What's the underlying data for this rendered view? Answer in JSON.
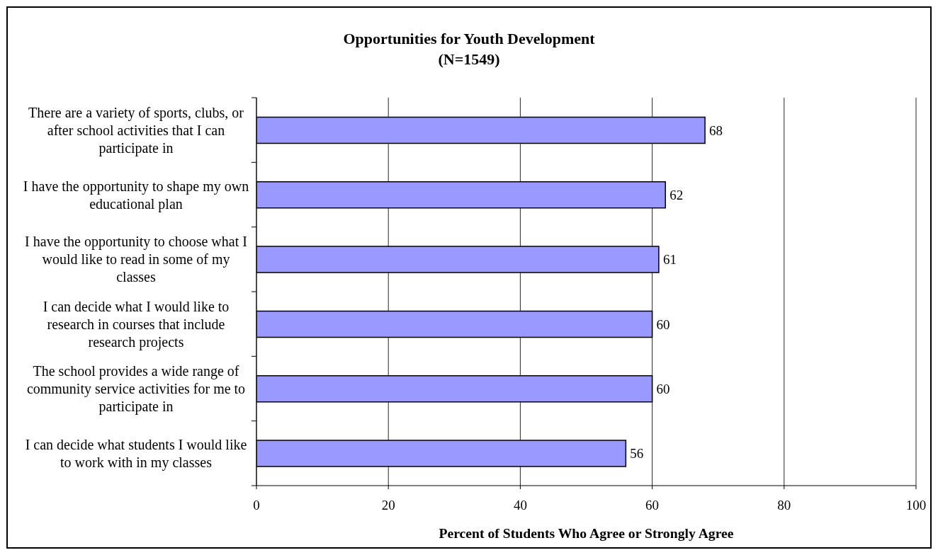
{
  "chart_data": {
    "type": "bar",
    "orientation": "horizontal",
    "title": "Opportunities for Youth Development",
    "subtitle": "(N=1549)",
    "xlabel": "Percent of Students Who Agree or Strongly Agree",
    "categories": [
      "There are a variety of sports, clubs, or after school activities that I can participate in",
      "I have the opportunity to shape my own educational plan",
      "I have the opportunity to choose what I would like to read in some of my classes",
      "I can decide what I would like to research in courses that include research projects",
      "The school provides a wide range of community service activities for me to participate in",
      "I can decide what students I would like to work with in my classes"
    ],
    "values": [
      68,
      62,
      61,
      60,
      60,
      56
    ],
    "color": "#9999ff",
    "xlim": [
      0,
      100
    ],
    "xticks": [
      0,
      20,
      40,
      60,
      80,
      100
    ],
    "grid": "x",
    "data_labels": true
  }
}
